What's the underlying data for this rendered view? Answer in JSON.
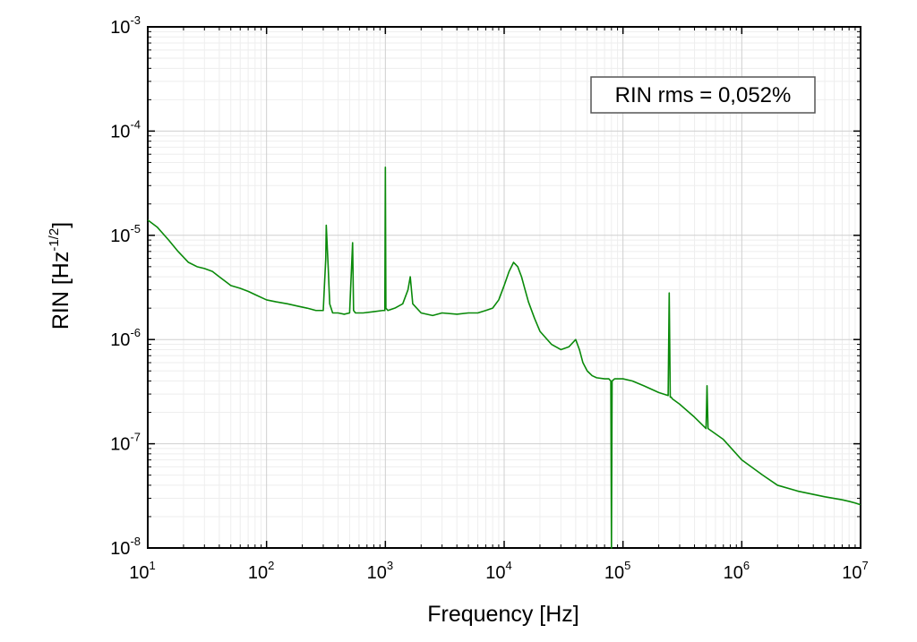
{
  "chart_data": {
    "type": "line",
    "xlabel": "Frequency [Hz]",
    "ylabel": "RIN [Hz^-1/2]",
    "ylabel_parts": {
      "base": "RIN [Hz",
      "exp": "-1/2",
      "close": "]"
    },
    "x_scale": "log",
    "y_scale": "log",
    "xlim": [
      10,
      10000000
    ],
    "ylim": [
      1e-08,
      0.001
    ],
    "x_ticks": [
      {
        "value": 10,
        "base": "10",
        "exp": "1"
      },
      {
        "value": 100,
        "base": "10",
        "exp": "2"
      },
      {
        "value": 1000,
        "base": "10",
        "exp": "3"
      },
      {
        "value": 10000,
        "base": "10",
        "exp": "4"
      },
      {
        "value": 100000,
        "base": "10",
        "exp": "5"
      },
      {
        "value": 1000000,
        "base": "10",
        "exp": "6"
      },
      {
        "value": 10000000,
        "base": "10",
        "exp": "7"
      }
    ],
    "y_ticks": [
      {
        "value": 1e-08,
        "base": "10",
        "exp": "-8"
      },
      {
        "value": 1e-07,
        "base": "10",
        "exp": "-7"
      },
      {
        "value": 1e-06,
        "base": "10",
        "exp": "-6"
      },
      {
        "value": 1e-05,
        "base": "10",
        "exp": "-5"
      },
      {
        "value": 0.0001,
        "base": "10",
        "exp": "-4"
      },
      {
        "value": 0.001,
        "base": "10",
        "exp": "-3"
      }
    ],
    "grid": true,
    "annotation": "RIN rms = 0,052%",
    "annotation_placement": "top-right",
    "series": [
      {
        "color": "#0a8a0a",
        "x": [
          10,
          12,
          15,
          18,
          22,
          26,
          30,
          35,
          40,
          50,
          60,
          70,
          80,
          100,
          120,
          150,
          180,
          220,
          260,
          300,
          315,
          318,
          330,
          340,
          360,
          400,
          450,
          500,
          530,
          540,
          560,
          650,
          800,
          950,
          990,
          1000,
          1010,
          1050,
          1200,
          1400,
          1550,
          1620,
          1700,
          2000,
          2500,
          3000,
          4000,
          5000,
          6000,
          7000,
          8000,
          9000,
          10000,
          11000,
          12000,
          13000,
          14000,
          15000,
          16000,
          18000,
          20000,
          25000,
          30000,
          35000,
          40000,
          43000,
          46000,
          50000,
          55000,
          60000,
          70000,
          76000,
          79000,
          80000,
          81000,
          85000,
          100000,
          120000,
          150000,
          200000,
          240000,
          245000,
          250000,
          255000,
          260000,
          300000,
          400000,
          500000,
          510000,
          520000,
          700000,
          1000000,
          1500000,
          2000000,
          3000000,
          5000000,
          7000000,
          8000000,
          9000000,
          10000000
        ],
        "y": [
          1.4e-05,
          1.2e-05,
          9e-06,
          7e-06,
          5.5e-06,
          5e-06,
          4.8e-06,
          4.5e-06,
          4e-06,
          3.3e-06,
          3.1e-06,
          2.9e-06,
          2.7e-06,
          2.4e-06,
          2.3e-06,
          2.2e-06,
          2.1e-06,
          2e-06,
          1.9e-06,
          1.9e-06,
          6e-06,
          1.25e-05,
          5e-06,
          2.2e-06,
          1.8e-06,
          1.8e-06,
          1.75e-06,
          1.8e-06,
          8.5e-06,
          1.9e-06,
          1.8e-06,
          1.8e-06,
          1.85e-06,
          1.9e-06,
          1.9e-06,
          4.5e-05,
          2e-06,
          1.9e-06,
          2e-06,
          2.2e-06,
          3e-06,
          4e-06,
          2.2e-06,
          1.8e-06,
          1.7e-06,
          1.8e-06,
          1.75e-06,
          1.8e-06,
          1.8e-06,
          1.9e-06,
          2e-06,
          2.4e-06,
          3.3e-06,
          4.5e-06,
          5.5e-06,
          5e-06,
          4e-06,
          3e-06,
          2.3e-06,
          1.6e-06,
          1.2e-06,
          9e-07,
          8e-07,
          8.5e-07,
          1e-06,
          8e-07,
          6e-07,
          5e-07,
          4.5e-07,
          4.3e-07,
          4.2e-07,
          4.2e-07,
          4e-07,
          8e-09,
          4e-07,
          4.2e-07,
          4.2e-07,
          4e-07,
          3.6e-07,
          3.1e-07,
          2.9e-07,
          2.8e-06,
          2.8e-07,
          2.8e-07,
          2.7e-07,
          2.4e-07,
          1.8e-07,
          1.4e-07,
          3.6e-07,
          1.4e-07,
          1.1e-07,
          7e-08,
          5e-08,
          4e-08,
          3.5e-08,
          3.1e-08,
          2.9e-08,
          2.8e-08,
          2.7e-08,
          2.6e-08
        ]
      }
    ]
  }
}
